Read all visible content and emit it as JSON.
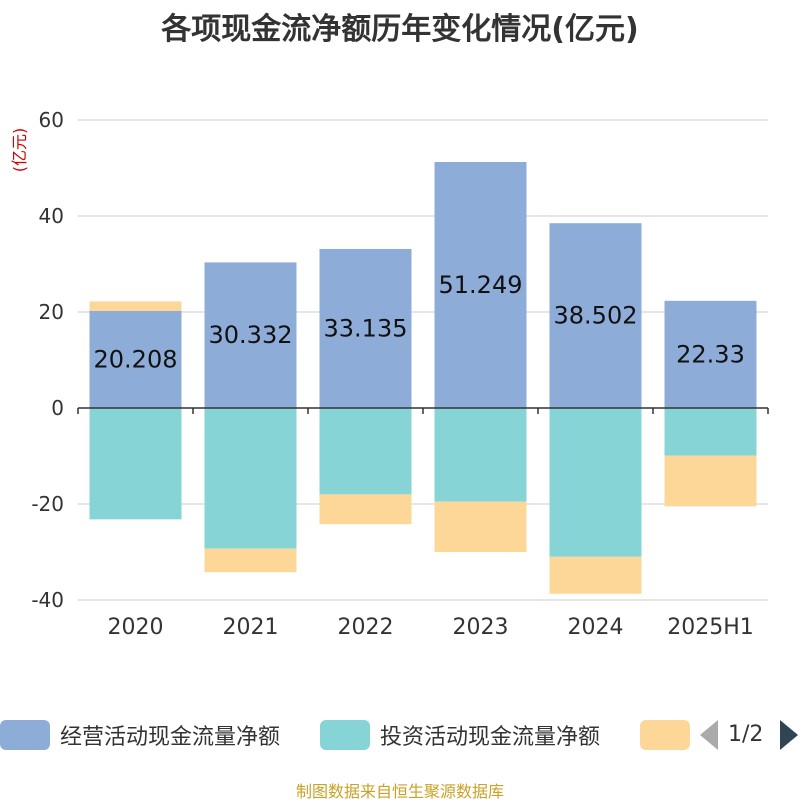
{
  "title": "各项现金流净额历年变化情况(亿元)",
  "y_unit": "(亿元)",
  "source": "制图数据来自恒生聚源数据库",
  "legend": {
    "items": [
      {
        "label": "经营活动现金流量净额",
        "color": "#8eacd8"
      },
      {
        "label": "投资活动现金流量净额",
        "color": "#86d4d6"
      },
      {
        "label": "",
        "color": "#fdd798"
      }
    ],
    "page": "1/2"
  },
  "chart_data": {
    "type": "bar",
    "stacked": true,
    "categories": [
      "2020",
      "2021",
      "2022",
      "2023",
      "2024",
      "2025H1"
    ],
    "ylim": [
      -40,
      60
    ],
    "yticks": [
      -40,
      -20,
      0,
      20,
      40,
      60
    ],
    "grid": true,
    "series": [
      {
        "name": "经营活动现金流量净额",
        "color": "#8eacd8",
        "values": [
          20.208,
          30.332,
          33.135,
          51.249,
          38.502,
          22.33
        ],
        "labels": [
          "20.208",
          "30.332",
          "33.135",
          "51.249",
          "38.502",
          "22.33"
        ]
      },
      {
        "name": "投资活动现金流量净额",
        "color": "#86d4d6",
        "values": [
          -23.2,
          -29.3,
          -18.0,
          -19.5,
          -31.0,
          -9.9
        ]
      },
      {
        "name": "",
        "color": "#fdd798",
        "values": [
          2.0,
          -4.9,
          -6.2,
          -10.5,
          -7.7,
          -10.6
        ]
      }
    ]
  }
}
